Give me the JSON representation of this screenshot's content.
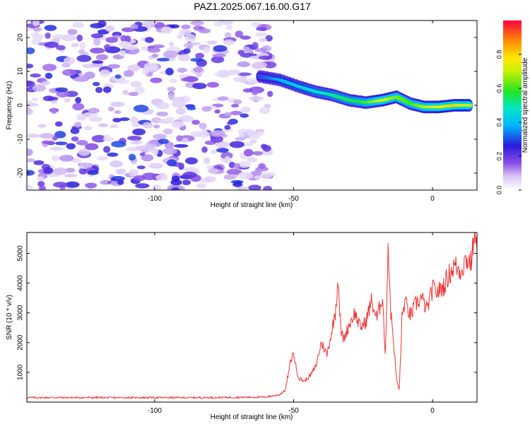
{
  "figure_title": "PAZ1.2025.067.16.00.G17",
  "colors": {
    "snr_line": "#ee3333",
    "track_low": "#2a1ad8",
    "noise_purple": "#8a4fe6"
  },
  "chart_data": [
    {
      "type": "heatmap",
      "title": "PAZ1.2025.067.16.00.G17",
      "xlabel": "Height of straight line (km)",
      "ylabel": "Frequency (Hz)",
      "xlim": [
        -146,
        16
      ],
      "ylim": [
        -25,
        25
      ],
      "xticks": [
        -100,
        -50,
        0
      ],
      "xtick_labels": [
        "-100",
        "-50",
        "0"
      ],
      "yticks": [
        -20,
        -10,
        0,
        10,
        20
      ],
      "ytick_labels": [
        "-20",
        "-10",
        "0",
        "10",
        "20"
      ],
      "grid": false,
      "colorbar": {
        "label": "Normalized spectral amplitude",
        "range": [
          0.0,
          1.0
        ],
        "ticks": [
          0.0,
          0.2,
          0.4,
          0.6,
          0.8
        ],
        "tick_labels": [
          "0.0",
          "0.2",
          "0.4",
          "0.6",
          "0.8"
        ],
        "colormap": "rainbow (white → purple → blue → cyan → green → yellow → red)"
      },
      "signal_track": {
        "description": "frequency of peak amplitude vs height",
        "x": [
          -62,
          -55,
          -48,
          -42,
          -36,
          -30,
          -24,
          -18,
          -13,
          -8,
          -3,
          2,
          8,
          14
        ],
        "y": [
          8.5,
          7.5,
          5.5,
          4,
          3,
          1.5,
          0.8,
          1.5,
          2.5,
          0.5,
          -0.5,
          -0.5,
          0,
          0
        ],
        "peak_amplitude": [
          0.35,
          0.45,
          0.5,
          0.55,
          0.6,
          0.65,
          0.7,
          0.85,
          0.75,
          0.7,
          0.8,
          0.9,
          0.95,
          0.85
        ]
      },
      "noise_region": {
        "x_range": [
          -146,
          -58
        ],
        "amplitude_range": [
          0.05,
          0.3
        ]
      }
    },
    {
      "type": "line",
      "xlabel": "Height of straight line (km)",
      "ylabel": "SNR (10 * v/v)",
      "xlim": [
        -146,
        16
      ],
      "ylim": [
        0,
        5700
      ],
      "xticks": [
        -100,
        -50,
        0
      ],
      "xtick_labels": [
        "-100",
        "-50",
        "0"
      ],
      "yticks": [
        1000,
        2000,
        3000,
        4000,
        5000
      ],
      "ytick_labels": [
        "1000",
        "2000",
        "3000",
        "4000",
        "5000"
      ],
      "grid": false,
      "series": [
        {
          "x": [
            -146,
            -120,
            -100,
            -80,
            -60,
            -55,
            -53,
            -52,
            -51,
            -50,
            -49,
            -48,
            -46,
            -44,
            -42,
            -40,
            -38,
            -36,
            -35,
            -34,
            -33,
            -32,
            -30,
            -28,
            -26,
            -24,
            -22,
            -20,
            -18,
            -17,
            -16,
            -15,
            -14,
            -13,
            -12,
            -11,
            -10,
            -8,
            -6,
            -4,
            -2,
            0,
            2,
            4,
            6,
            8,
            10,
            12,
            14,
            15,
            16
          ],
          "y": [
            150,
            150,
            150,
            150,
            170,
            250,
            400,
            900,
            1400,
            1650,
            1100,
            800,
            700,
            900,
            1200,
            2000,
            1600,
            2500,
            3000,
            4200,
            2400,
            2100,
            2600,
            3000,
            2500,
            2700,
            3400,
            2800,
            3600,
            1500,
            5300,
            3000,
            2000,
            800,
            400,
            2800,
            3400,
            2900,
            3300,
            3500,
            3100,
            3800,
            3700,
            3900,
            4300,
            4600,
            4400,
            4800,
            4700,
            5700,
            5000
          ]
        }
      ]
    }
  ]
}
